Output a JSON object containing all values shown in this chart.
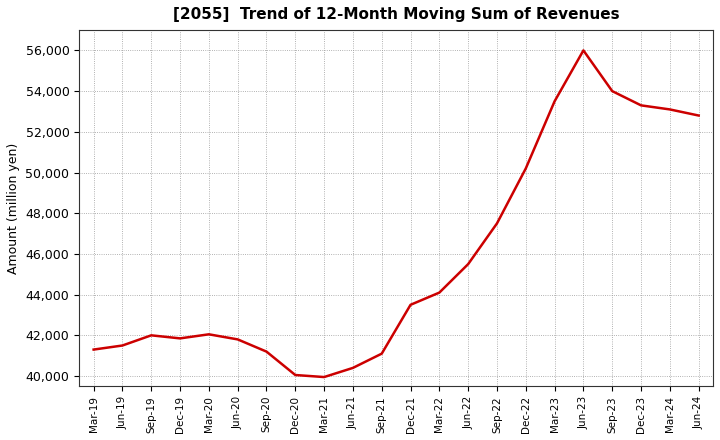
{
  "title": "[2055]  Trend of 12-Month Moving Sum of Revenues",
  "ylabel": "Amount (million yen)",
  "background_color": "#ffffff",
  "line_color": "#cc0000",
  "grid_color": "#999999",
  "ylim": [
    39500,
    57000
  ],
  "yticks": [
    40000,
    42000,
    44000,
    46000,
    48000,
    50000,
    52000,
    54000,
    56000
  ],
  "x_labels": [
    "Mar-19",
    "Jun-19",
    "Sep-19",
    "Dec-19",
    "Mar-20",
    "Jun-20",
    "Sep-20",
    "Dec-20",
    "Mar-21",
    "Jun-21",
    "Sep-21",
    "Dec-21",
    "Mar-22",
    "Jun-22",
    "Sep-22",
    "Dec-22",
    "Mar-23",
    "Jun-23",
    "Sep-23",
    "Dec-23",
    "Mar-24",
    "Jun-24"
  ],
  "values": [
    41300,
    41500,
    42000,
    41850,
    42050,
    41800,
    41200,
    40050,
    39950,
    40400,
    41100,
    43500,
    44100,
    45500,
    47500,
    50200,
    53500,
    56000,
    54000,
    53300,
    53100,
    52800
  ]
}
